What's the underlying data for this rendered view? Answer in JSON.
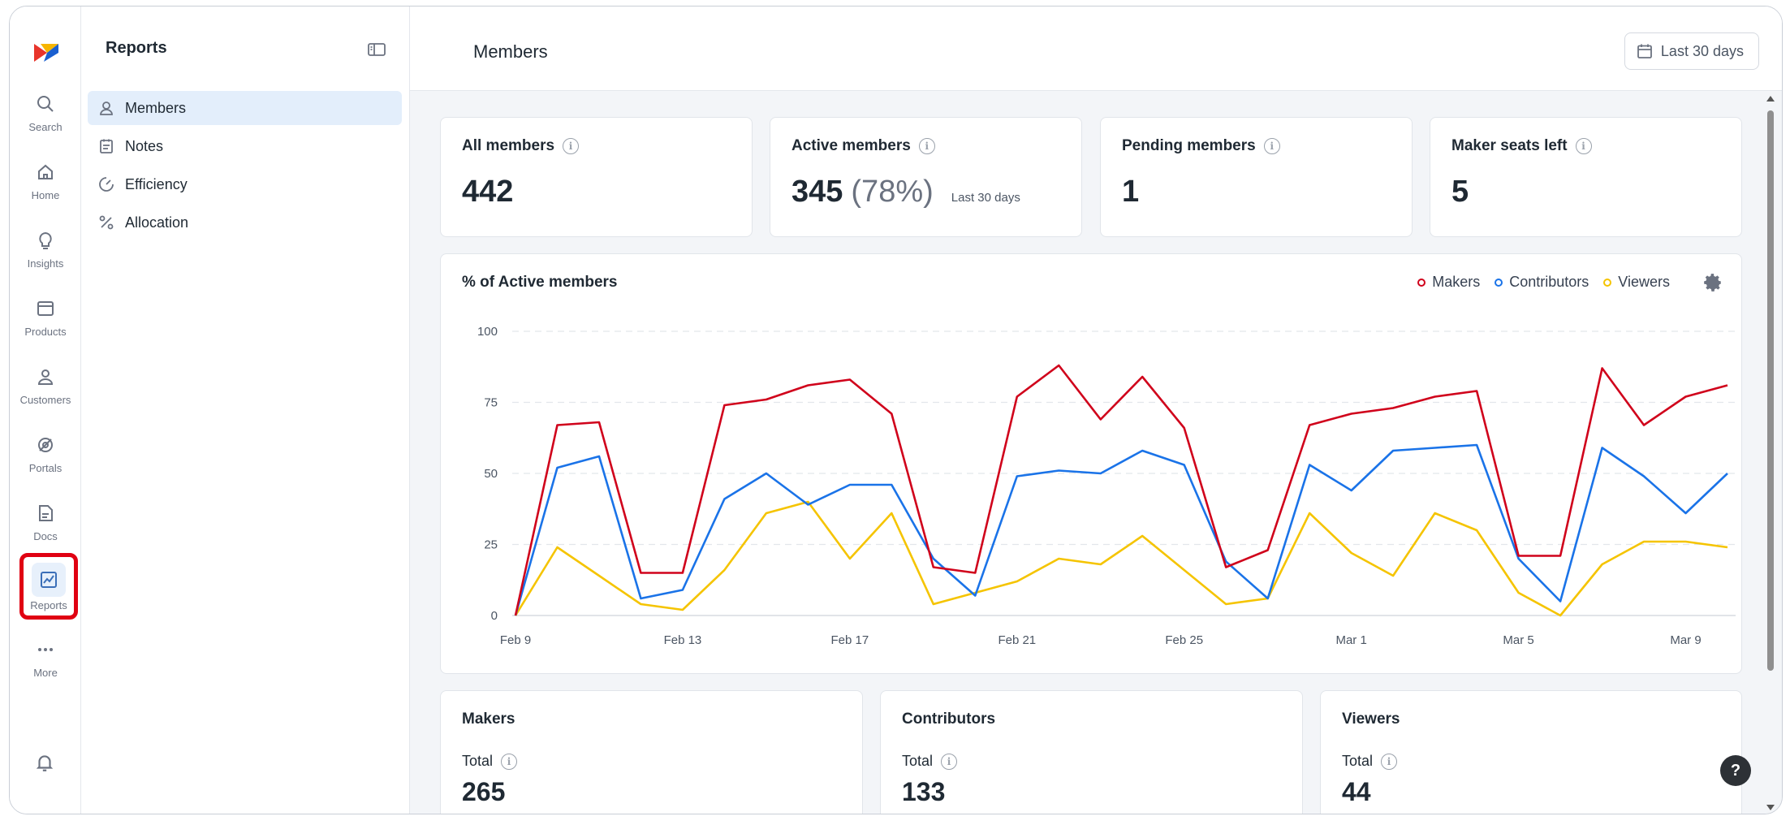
{
  "rail": {
    "items": [
      {
        "label": "Search",
        "icon": "search-icon"
      },
      {
        "label": "Home",
        "icon": "home-icon"
      },
      {
        "label": "Insights",
        "icon": "lightbulb-icon"
      },
      {
        "label": "Products",
        "icon": "window-icon"
      },
      {
        "label": "Customers",
        "icon": "customers-icon"
      },
      {
        "label": "Portals",
        "icon": "portal-icon"
      },
      {
        "label": "Docs",
        "icon": "doc-icon"
      },
      {
        "label": "Reports",
        "icon": "chart-icon",
        "active": true
      },
      {
        "label": "More",
        "icon": "more-icon"
      }
    ]
  },
  "sidebar": {
    "title": "Reports",
    "items": [
      {
        "label": "Members",
        "icon": "members-icon",
        "active": true
      },
      {
        "label": "Notes",
        "icon": "notes-icon"
      },
      {
        "label": "Efficiency",
        "icon": "gauge-icon"
      },
      {
        "label": "Allocation",
        "icon": "percent-icon"
      }
    ]
  },
  "header": {
    "title": "Members",
    "date_range": "Last 30 days"
  },
  "stats": {
    "all_members": {
      "label": "All members",
      "value": "442"
    },
    "active_members": {
      "label": "Active members",
      "value": "345",
      "percent": "(78%)",
      "note": "Last 30 days"
    },
    "pending_members": {
      "label": "Pending members",
      "value": "1"
    },
    "maker_seats": {
      "label": "Maker seats left",
      "value": "5"
    }
  },
  "chart": {
    "title": "% of Active members"
  },
  "chart_data": {
    "type": "line",
    "title": "% of Active members",
    "xlabel": "",
    "ylabel": "",
    "ylim": [
      0,
      100
    ],
    "yticks": [
      0,
      25,
      50,
      75,
      100
    ],
    "x": [
      "Feb 9",
      "Feb 10",
      "Feb 11",
      "Feb 12",
      "Feb 13",
      "Feb 14",
      "Feb 15",
      "Feb 16",
      "Feb 17",
      "Feb 18",
      "Feb 19",
      "Feb 20",
      "Feb 21",
      "Feb 22",
      "Feb 23",
      "Feb 24",
      "Feb 25",
      "Feb 26",
      "Feb 27",
      "Feb 28",
      "Mar 1",
      "Mar 2",
      "Mar 3",
      "Mar 4",
      "Mar 5",
      "Mar 6",
      "Mar 7",
      "Mar 8",
      "Mar 9",
      "Mar 10"
    ],
    "xtick_labels": [
      "Feb 9",
      "Feb 13",
      "Feb 17",
      "Feb 21",
      "Feb 25",
      "Mar 1",
      "Mar 5",
      "Mar 9"
    ],
    "xtick_index": [
      0,
      4,
      8,
      12,
      16,
      20,
      24,
      28
    ],
    "grid": true,
    "legend_position": "top-right",
    "series": [
      {
        "name": "Makers",
        "color": "#d0021b",
        "values": [
          0,
          67,
          68,
          15,
          15,
          74,
          76,
          81,
          83,
          71,
          17,
          15,
          77,
          88,
          69,
          84,
          66,
          17,
          23,
          67,
          71,
          73,
          77,
          79,
          21,
          21,
          87,
          67,
          77,
          81
        ]
      },
      {
        "name": "Contributors",
        "color": "#1a73e8",
        "values": [
          0,
          52,
          56,
          6,
          9,
          41,
          50,
          39,
          46,
          46,
          20,
          7,
          49,
          51,
          50,
          58,
          53,
          19,
          6,
          53,
          44,
          58,
          59,
          60,
          20,
          5,
          59,
          49,
          36,
          50
        ]
      },
      {
        "name": "Viewers",
        "color": "#f5c400",
        "values": [
          0,
          24,
          14,
          4,
          2,
          16,
          36,
          40,
          20,
          36,
          4,
          8,
          12,
          20,
          18,
          28,
          16,
          4,
          6,
          36,
          22,
          14,
          36,
          30,
          8,
          0,
          18,
          26,
          26,
          24
        ]
      }
    ]
  },
  "totals": {
    "makers": {
      "title": "Makers",
      "label": "Total",
      "value": "265"
    },
    "contributors": {
      "title": "Contributors",
      "label": "Total",
      "value": "133"
    },
    "viewers": {
      "title": "Viewers",
      "label": "Total",
      "value": "44"
    }
  },
  "help": "?"
}
